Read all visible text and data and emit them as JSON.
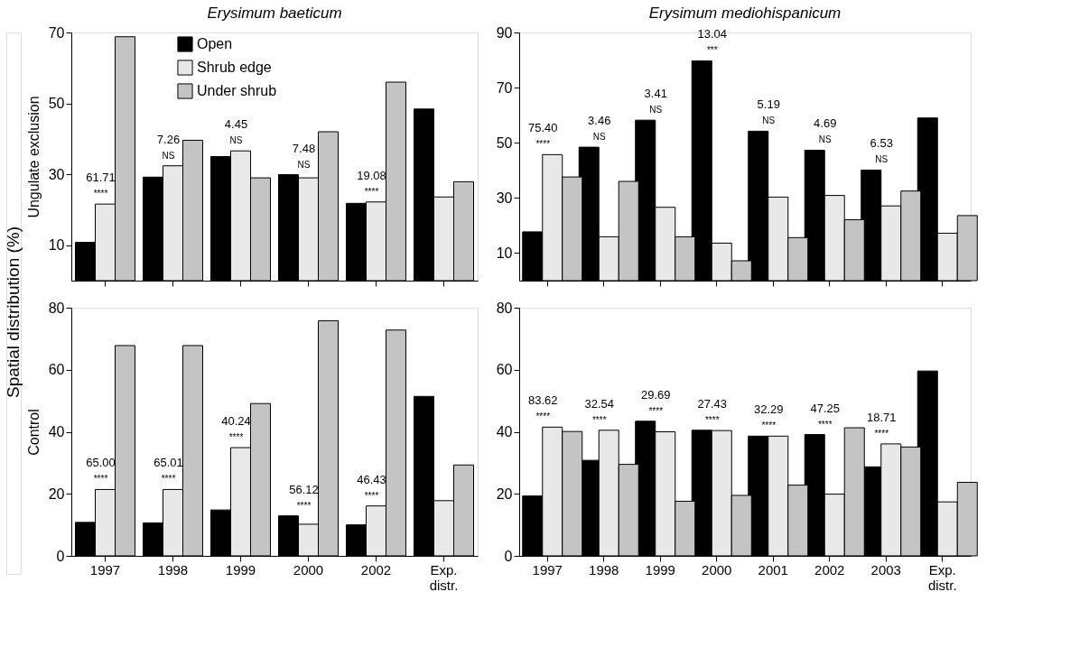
{
  "chart_data": [
    {
      "type": "bar",
      "title": "Erysimum baeticum",
      "ylabel": "Ungulate exclusion",
      "categories": [
        "1997",
        "1998",
        "1999",
        "2000",
        "2002",
        "Exp.\ndistr."
      ],
      "series": [
        {
          "name": "Open",
          "color": "#000000",
          "values": [
            10.8,
            29.2,
            35.0,
            29.9,
            21.8,
            48.4
          ]
        },
        {
          "name": "Shrub edge",
          "color": "#e8e8e8",
          "values": [
            21.6,
            32.4,
            36.6,
            29.0,
            22.2,
            23.6
          ]
        },
        {
          "name": "Under shrub",
          "color": "#c4c4c4",
          "values": [
            68.8,
            39.6,
            29.0,
            42.0,
            56.0,
            27.9
          ]
        }
      ],
      "ylim": [
        0,
        70
      ],
      "yticks": [
        10,
        30,
        50,
        70
      ],
      "tick_labels": "y",
      "legend": "top left",
      "grid": false,
      "annotations": [
        "61.71",
        "****",
        "7.26",
        "NS",
        "4.45",
        "NS",
        "7.48",
        "NS",
        "19.08",
        "****",
        "Spatial distribution (%)"
      ]
    },
    {
      "type": "bar",
      "title": "Erysimum mediohispanicum",
      "categories": [
        "1997",
        "1998",
        "1999",
        "2000",
        "2001",
        "2002",
        "2003",
        "Exp.\ndistr."
      ],
      "series": [
        {
          "color": "#000000",
          "values": [
            17.7,
            48.4,
            58.2,
            79.7,
            54.2,
            47.3,
            40.1,
            59.0
          ]
        },
        {
          "color": "#e8e8e8",
          "values": [
            45.7,
            15.9,
            26.6,
            13.6,
            30.3,
            30.9,
            27.1,
            17.2
          ]
        },
        {
          "color": "#c4c4c4",
          "values": [
            37.6,
            36.0,
            15.9,
            7.2,
            15.6,
            22.1,
            32.5,
            23.6
          ]
        }
      ],
      "ylim": [
        0,
        90
      ],
      "yticks": [
        10,
        30,
        50,
        70,
        90
      ],
      "tick_labels": "y",
      "grid": false,
      "annotations": [
        "75.40",
        "****",
        "3.46",
        "NS",
        "3.41",
        "NS",
        "13.04",
        "***",
        "5.19",
        "NS",
        "4.69",
        "NS",
        "6.53",
        "NS"
      ]
    },
    {
      "type": "bar",
      "ylabel": "Control",
      "categories": [
        "1997",
        "1998",
        "1999",
        "2000",
        "2002",
        "Exp.\ndistr."
      ],
      "series": [
        {
          "color": "#000000",
          "values": [
            10.8,
            10.6,
            14.8,
            12.9,
            10.0,
            51.4
          ]
        },
        {
          "color": "#e8e8e8",
          "values": [
            21.4,
            21.4,
            34.9,
            10.2,
            16.1,
            17.8
          ]
        },
        {
          "color": "#c4c4c4",
          "values": [
            67.8,
            67.8,
            49.1,
            75.8,
            72.8,
            29.3
          ]
        }
      ],
      "ylim": [
        0,
        80
      ],
      "yticks": [
        0,
        20,
        40,
        60,
        80
      ],
      "grid": false,
      "annotations": [
        "65.00",
        "****",
        "65.01",
        "****",
        "40.24",
        "****",
        "56.12",
        "****",
        "46.43",
        "****"
      ]
    },
    {
      "type": "bar",
      "categories": [
        "1997",
        "1998",
        "1999",
        "2000",
        "2001",
        "2002",
        "2003",
        "Exp.\ndistr."
      ],
      "series": [
        {
          "color": "#000000",
          "values": [
            19.3,
            30.8,
            43.4,
            40.5,
            38.6,
            39.1,
            28.7,
            59.6
          ]
        },
        {
          "color": "#e8e8e8",
          "values": [
            41.5,
            40.5,
            40.0,
            40.4,
            38.6,
            19.9,
            36.1,
            17.4
          ]
        },
        {
          "color": "#c4c4c4",
          "values": [
            40.1,
            29.5,
            17.6,
            19.5,
            22.8,
            41.3,
            35.1,
            23.7
          ]
        }
      ],
      "ylim": [
        0,
        80
      ],
      "yticks": [
        0,
        20,
        40,
        60,
        80
      ],
      "grid": false,
      "annotations": [
        "83.62",
        "****",
        "32.54",
        "****",
        "29.69",
        "****",
        "27.43",
        "****",
        "32.29",
        "****",
        "47.25",
        "****",
        "18.71",
        "****"
      ]
    }
  ]
}
